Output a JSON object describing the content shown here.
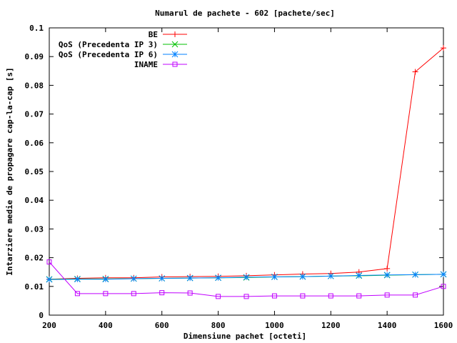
{
  "chart_data": {
    "type": "line",
    "title": "Numarul de pachete - 602 [pachete/sec]",
    "xlabel": "Dimensiune pachet [octeti]",
    "ylabel": "Intarziere medie de propagare cap-la-cap [s]",
    "xlim": [
      200,
      1600
    ],
    "ylim": [
      0,
      0.1
    ],
    "xticks": [
      200,
      400,
      600,
      800,
      1000,
      1200,
      1400,
      1600
    ],
    "yticks": [
      0,
      0.01,
      0.02,
      0.03,
      0.04,
      0.05,
      0.06,
      0.07,
      0.08,
      0.09,
      0.1
    ],
    "ytick_labels": [
      "0",
      "0.01",
      "0.02",
      "0.03",
      "0.04",
      "0.05",
      "0.06",
      "0.07",
      "0.08",
      "0.09",
      "0.1"
    ],
    "grid": false,
    "legend_position": "top-left",
    "x": [
      200,
      300,
      400,
      500,
      600,
      700,
      800,
      900,
      1000,
      1100,
      1200,
      1300,
      1400,
      1500,
      1600
    ],
    "series": [
      {
        "name": "BE",
        "color": "#ff0000",
        "marker": "plus",
        "values": [
          0.0125,
          0.0128,
          0.013,
          0.013,
          0.0133,
          0.0134,
          0.0135,
          0.0137,
          0.014,
          0.0143,
          0.0145,
          0.015,
          0.0162,
          0.0847,
          0.093
        ]
      },
      {
        "name": "QoS (Precedenta IP 3)",
        "color": "#00c000",
        "marker": "cross",
        "values": [
          0.0125,
          0.0126,
          0.0126,
          0.0127,
          0.0128,
          0.0129,
          0.013,
          0.0131,
          0.0133,
          0.0134,
          0.0136,
          0.0137,
          0.0139,
          0.0141,
          0.0142
        ]
      },
      {
        "name": "QoS (Precedenta IP 6)",
        "color": "#0080ff",
        "marker": "star",
        "values": [
          0.0124,
          0.0125,
          0.0125,
          0.0127,
          0.0128,
          0.0129,
          0.013,
          0.0132,
          0.0133,
          0.0134,
          0.0136,
          0.0138,
          0.014,
          0.0141,
          0.0142
        ]
      },
      {
        "name": "INAME",
        "color": "#c000ff",
        "marker": "square",
        "values": [
          0.0185,
          0.0075,
          0.0075,
          0.0075,
          0.0078,
          0.0077,
          0.0065,
          0.0065,
          0.0067,
          0.0067,
          0.0067,
          0.0067,
          0.007,
          0.007,
          0.01
        ]
      }
    ]
  }
}
